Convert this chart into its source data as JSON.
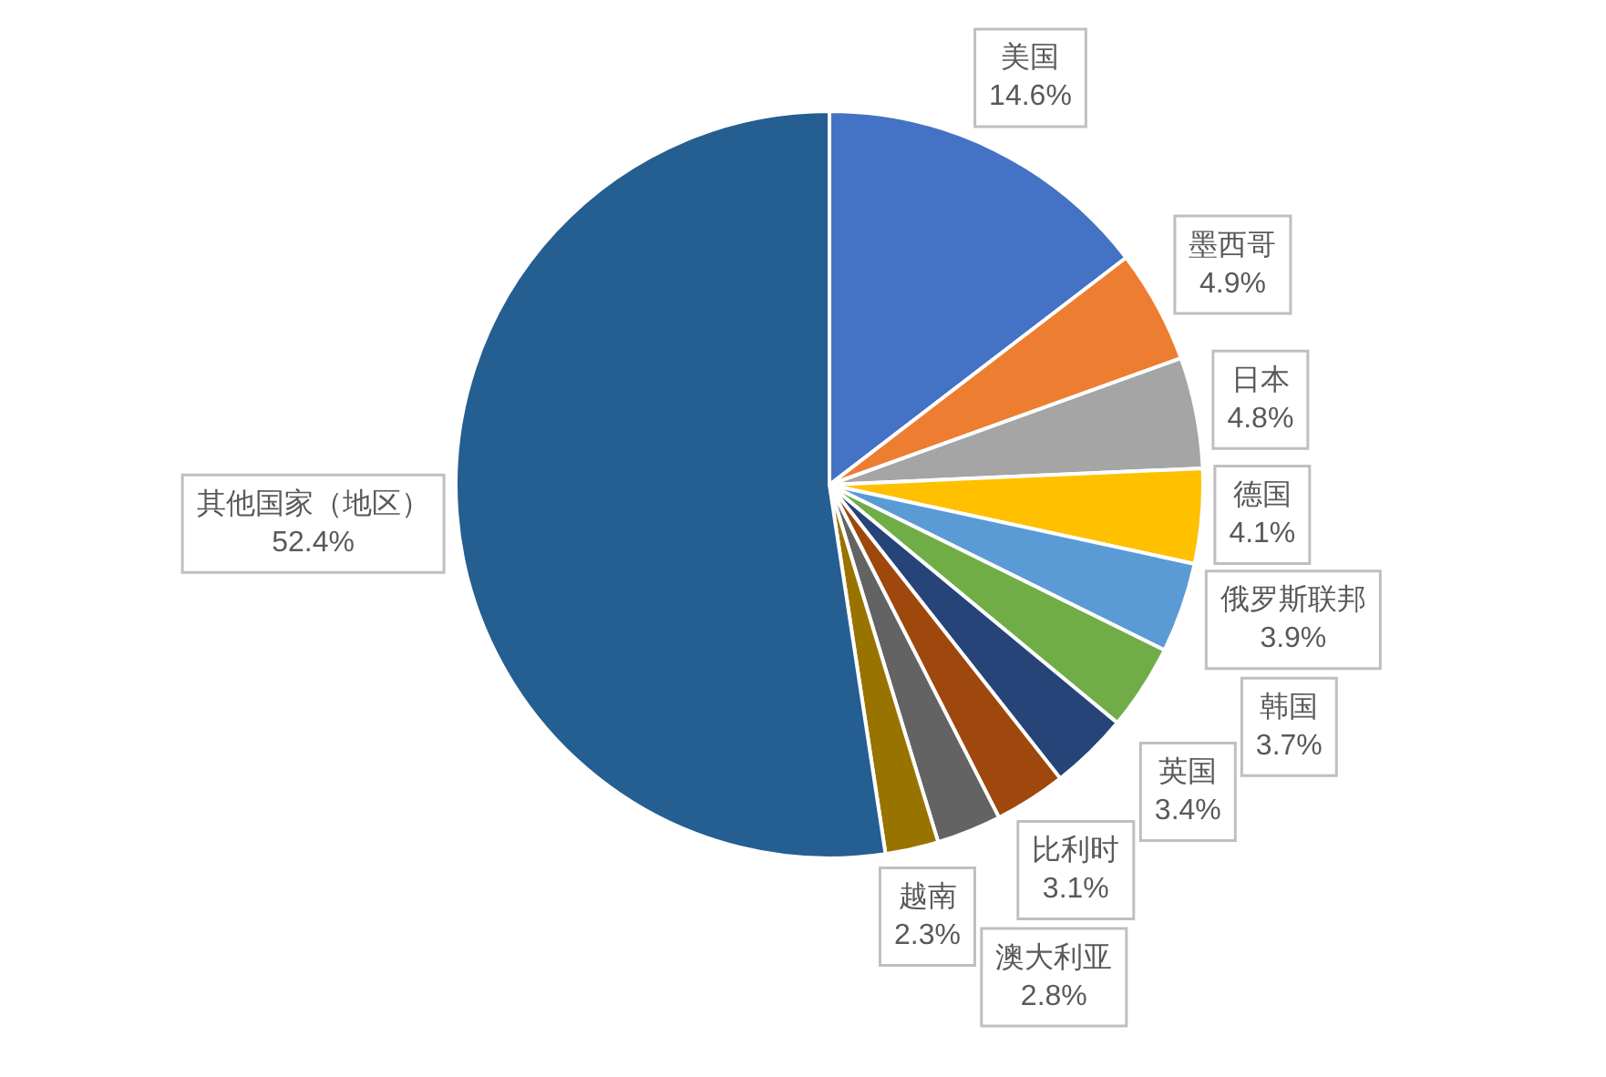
{
  "chart_data": {
    "type": "pie",
    "categories": [
      "美国",
      "墨西哥",
      "日本",
      "德国",
      "俄罗斯联邦",
      "韩国",
      "英国",
      "比利时",
      "澳大利亚",
      "越南",
      "其他国家（地区）"
    ],
    "values": [
      14.6,
      4.9,
      4.8,
      4.1,
      3.9,
      3.7,
      3.4,
      3.1,
      2.8,
      2.3,
      52.4
    ],
    "value_labels": [
      "14.6%",
      "4.9%",
      "4.8%",
      "4.1%",
      "3.9%",
      "3.7%",
      "3.4%",
      "3.1%",
      "2.8%",
      "2.3%",
      "52.4%"
    ],
    "colors": [
      "#4472c4",
      "#ed7d31",
      "#a5a5a5",
      "#ffc000",
      "#5b9bd5",
      "#70ad47",
      "#264478",
      "#9e480e",
      "#636363",
      "#997300",
      "#255e91"
    ],
    "legend": false
  }
}
